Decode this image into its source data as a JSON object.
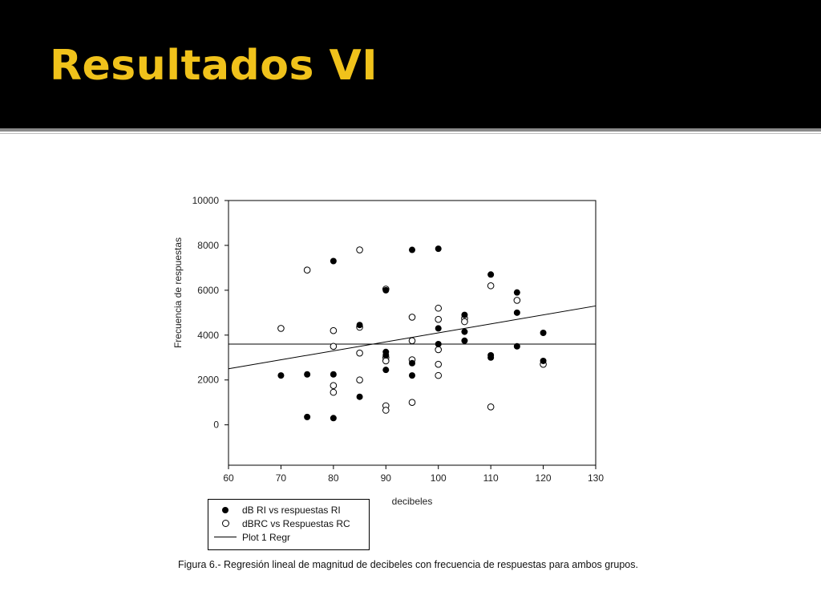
{
  "slide": {
    "title": "Resultados VI",
    "title_color": "#f0c21b",
    "header_background": "#000000"
  },
  "chart_data": {
    "type": "scatter",
    "xlabel": "decibeles",
    "ylabel": "Frecuencia de respuestas",
    "xlim": [
      60,
      130
    ],
    "ylim": [
      -1800,
      10000
    ],
    "x_ticks": [
      60,
      70,
      80,
      90,
      100,
      110,
      120,
      130
    ],
    "y_ticks": [
      0,
      2000,
      4000,
      6000,
      8000,
      10000
    ],
    "grid": false,
    "legend_position": "bottom-left",
    "series": [
      {
        "name": "dB RI vs respuestas RI",
        "marker": "filled-circle",
        "color": "#000000",
        "points": [
          [
            70,
            2200
          ],
          [
            75,
            2250
          ],
          [
            75,
            350
          ],
          [
            80,
            7300
          ],
          [
            80,
            2250
          ],
          [
            80,
            300
          ],
          [
            85,
            4450
          ],
          [
            85,
            1250
          ],
          [
            90,
            6000
          ],
          [
            90,
            3250
          ],
          [
            90,
            3100
          ],
          [
            90,
            2450
          ],
          [
            95,
            7800
          ],
          [
            95,
            2750
          ],
          [
            95,
            2200
          ],
          [
            100,
            7850
          ],
          [
            100,
            4300
          ],
          [
            100,
            3600
          ],
          [
            105,
            4900
          ],
          [
            105,
            4150
          ],
          [
            105,
            3750
          ],
          [
            110,
            6700
          ],
          [
            110,
            3100
          ],
          [
            110,
            3000
          ],
          [
            115,
            5900
          ],
          [
            115,
            5000
          ],
          [
            115,
            3500
          ],
          [
            120,
            4100
          ],
          [
            120,
            2850
          ]
        ]
      },
      {
        "name": "dBRC vs Respuestas RC",
        "marker": "open-circle",
        "color": "#000000",
        "points": [
          [
            70,
            4300
          ],
          [
            75,
            6900
          ],
          [
            80,
            4200
          ],
          [
            80,
            3500
          ],
          [
            80,
            1750
          ],
          [
            80,
            1450
          ],
          [
            85,
            7800
          ],
          [
            85,
            4350
          ],
          [
            85,
            3200
          ],
          [
            85,
            2000
          ],
          [
            90,
            6050
          ],
          [
            90,
            3000
          ],
          [
            90,
            2850
          ],
          [
            90,
            850
          ],
          [
            90,
            650
          ],
          [
            95,
            4800
          ],
          [
            95,
            3750
          ],
          [
            95,
            2900
          ],
          [
            95,
            1000
          ],
          [
            100,
            5200
          ],
          [
            100,
            4700
          ],
          [
            100,
            3350
          ],
          [
            100,
            2700
          ],
          [
            100,
            2200
          ],
          [
            105,
            4750
          ],
          [
            105,
            4600
          ],
          [
            110,
            6200
          ],
          [
            110,
            800
          ],
          [
            115,
            5550
          ],
          [
            120,
            2700
          ]
        ]
      },
      {
        "name": "Plot 1 Regr",
        "marker": "line",
        "color": "#000000",
        "line": [
          [
            60,
            2500
          ],
          [
            130,
            5300
          ]
        ]
      }
    ],
    "reference_line_y": 3600
  },
  "caption": "Figura 6.- Regresión lineal de magnitud de decibeles con frecuencia de respuestas para ambos grupos."
}
